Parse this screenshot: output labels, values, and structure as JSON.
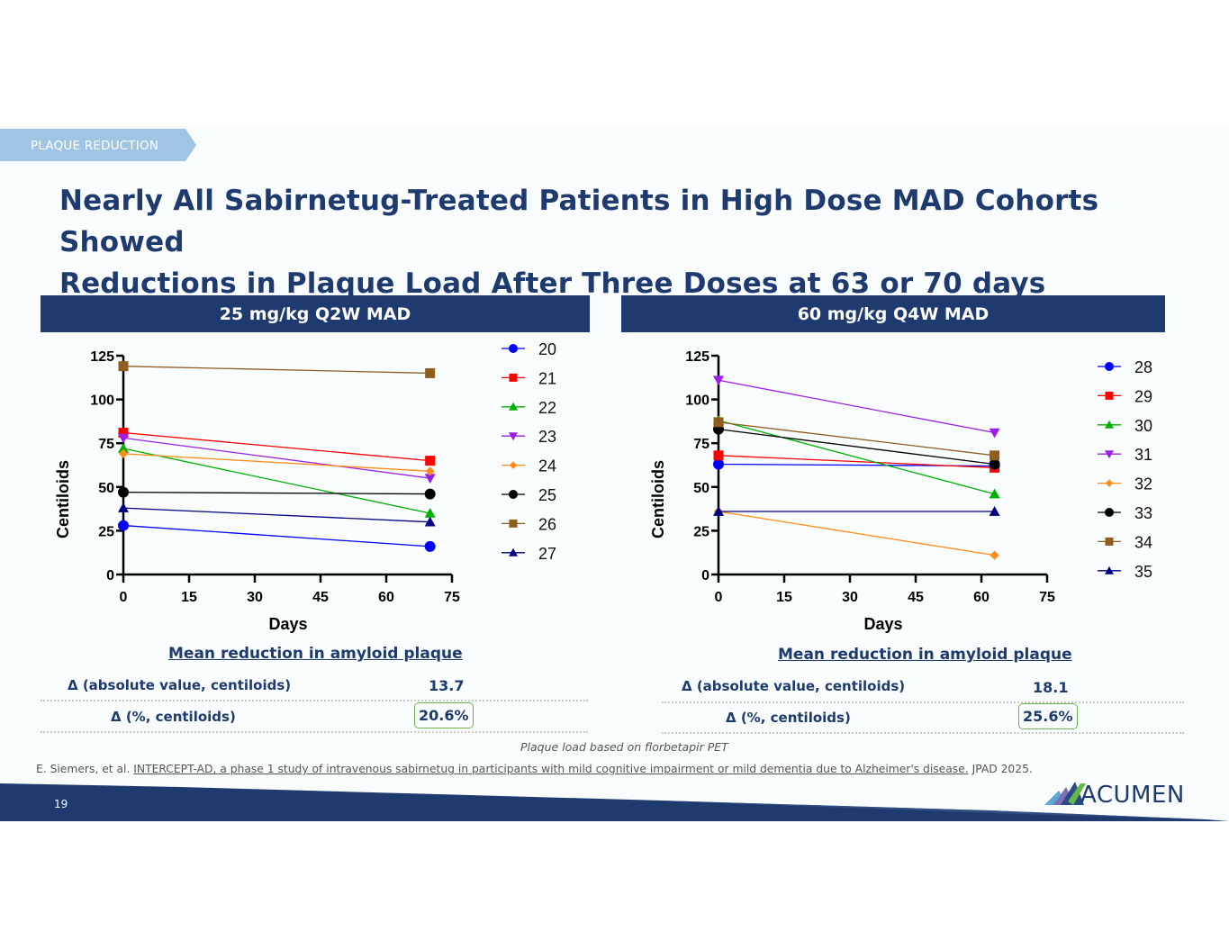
{
  "section_tag": "PLAQUE REDUCTION",
  "title_line1": "Nearly All Sabirnetug-Treated Patients in High Dose MAD Cohorts Showed",
  "title_line2": "Reductions in Plaque Load After Three Doses at 63 or 70 days",
  "panels": [
    {
      "header": "25 mg/kg Q2W MAD",
      "mean_title": "Mean reduction in amyloid plaque",
      "abs_label": "Δ (absolute value, centiloids)",
      "abs_value": "13.7",
      "pct_label": "Δ (%, centiloids)",
      "pct_value": "20.6%"
    },
    {
      "header": "60 mg/kg Q4W MAD",
      "mean_title": "Mean reduction in amyloid plaque",
      "abs_label": "Δ (absolute value, centiloids)",
      "abs_value": "18.1",
      "pct_label": "Δ (%, centiloids)",
      "pct_value": "25.6%"
    }
  ],
  "caption": "Plaque load based on florbetapir PET",
  "citation": {
    "prefix": "E. Siemers, et al. ",
    "linked": "INTERCEPT-AD, a phase 1 study of intravenous sabirnetug in participants with mild cognitive impairment or mild dementia due to Alzheimer's disease.",
    "suffix": " JPAD 2025."
  },
  "page_number": "19",
  "logo_text": "ACUMEN",
  "colors": {
    "navy": "#1f3a6e",
    "tag": "#9fc4e4",
    "highlight_border": "#6db24d"
  },
  "chart_data": [
    {
      "type": "line",
      "title": "25 mg/kg Q2W MAD",
      "xlabel": "Days",
      "ylabel": "Centiloids",
      "xlim": [
        0,
        75
      ],
      "ylim": [
        0,
        125
      ],
      "xticks": [
        0,
        15,
        30,
        45,
        60,
        75
      ],
      "yticks": [
        0,
        25,
        50,
        75,
        100,
        125
      ],
      "grid": false,
      "legend_position": "right",
      "x": [
        0,
        70
      ],
      "series": [
        {
          "name": "20",
          "color": "#0000ff",
          "marker": "circle",
          "values": [
            28,
            16
          ]
        },
        {
          "name": "21",
          "color": "#ff0000",
          "marker": "square",
          "values": [
            81,
            65
          ]
        },
        {
          "name": "22",
          "color": "#00b000",
          "marker": "triangle-up",
          "values": [
            72,
            35
          ]
        },
        {
          "name": "23",
          "color": "#9b1fe8",
          "marker": "triangle-down",
          "values": [
            78,
            55
          ]
        },
        {
          "name": "24",
          "color": "#ff8c1a",
          "marker": "diamond",
          "values": [
            69,
            59
          ]
        },
        {
          "name": "25",
          "color": "#000000",
          "marker": "circle",
          "values": [
            47,
            46
          ]
        },
        {
          "name": "26",
          "color": "#8f5e1e",
          "marker": "square",
          "values": [
            119,
            115
          ]
        },
        {
          "name": "27",
          "color": "#000080",
          "marker": "triangle-up",
          "values": [
            38,
            30
          ]
        }
      ]
    },
    {
      "type": "line",
      "title": "60 mg/kg Q4W MAD",
      "xlabel": "Days",
      "ylabel": "Centiloids",
      "xlim": [
        0,
        75
      ],
      "ylim": [
        0,
        125
      ],
      "xticks": [
        0,
        15,
        30,
        45,
        60,
        75
      ],
      "yticks": [
        0,
        25,
        50,
        75,
        100,
        125
      ],
      "grid": false,
      "legend_position": "right",
      "x": [
        0,
        63
      ],
      "series": [
        {
          "name": "28",
          "color": "#0000ff",
          "marker": "circle",
          "values": [
            63,
            62
          ]
        },
        {
          "name": "29",
          "color": "#ff0000",
          "marker": "square",
          "values": [
            68,
            61
          ]
        },
        {
          "name": "30",
          "color": "#00b000",
          "marker": "triangle-up",
          "values": [
            88,
            46
          ]
        },
        {
          "name": "31",
          "color": "#9b1fe8",
          "marker": "triangle-down",
          "values": [
            111,
            81
          ]
        },
        {
          "name": "32",
          "color": "#ff8c1a",
          "marker": "diamond",
          "values": [
            36,
            11
          ]
        },
        {
          "name": "33",
          "color": "#000000",
          "marker": "circle",
          "values": [
            83,
            63
          ]
        },
        {
          "name": "34",
          "color": "#8f5e1e",
          "marker": "square",
          "values": [
            87,
            68
          ]
        },
        {
          "name": "35",
          "color": "#000080",
          "marker": "triangle-up",
          "values": [
            36,
            36
          ]
        }
      ]
    }
  ]
}
